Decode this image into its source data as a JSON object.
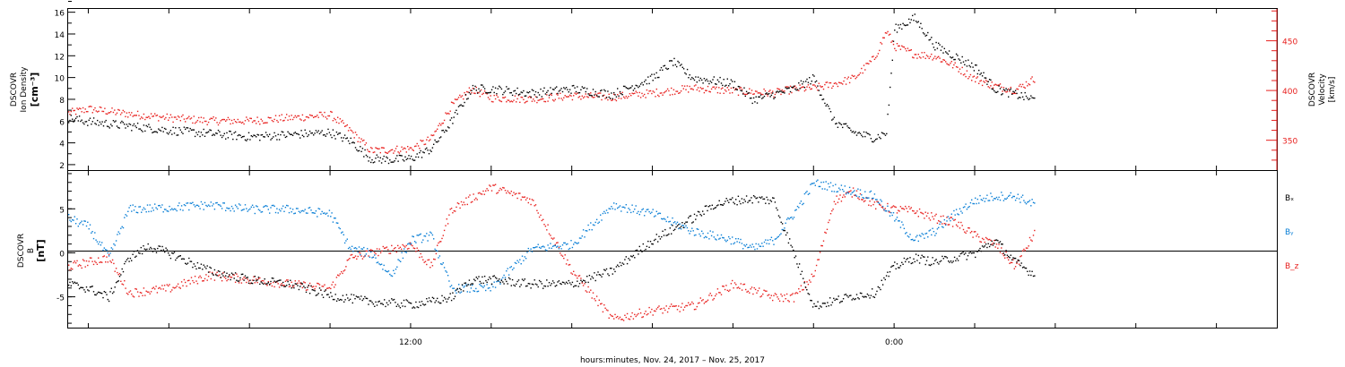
{
  "figure": {
    "xlabel": "hours:minutes, Nov. 24, 2017 – Nov. 25, 2017",
    "x_ticks": [
      "12:00",
      "0:00"
    ]
  },
  "colors": {
    "black": "#000000",
    "red": "#e8211f",
    "blue": "#0a7fd6"
  },
  "chart_data": [
    {
      "type": "scatter",
      "title": "",
      "ylabel_left": [
        "DSCOVR",
        "Ion  Density",
        "[cm⁻³]"
      ],
      "ylabel_right": [
        "DSCOVR",
        "Velocity",
        "[km/s]"
      ],
      "ylim_left": [
        1.5,
        16.3
      ],
      "yticks_left": [
        "2",
        "4",
        "6",
        "8",
        "10",
        "12",
        "14",
        "16"
      ],
      "ylim_right": [
        320,
        482
      ],
      "yticks_right": [
        "350",
        "400",
        "450"
      ],
      "xlim_hours": [
        3.5,
        33.5
      ],
      "grid": false,
      "series": [
        {
          "name": "",
          "axis": "left",
          "color": "black",
          "x": [
            3.5,
            4,
            5,
            6,
            7,
            8,
            9,
            10,
            10.5,
            11,
            11.5,
            12,
            12.5,
            13,
            13.5,
            14,
            15,
            16,
            17,
            18,
            18.5,
            19,
            20,
            20.5,
            21,
            21.5,
            22,
            22.5,
            23,
            23.5,
            23.8,
            24,
            24.5,
            25,
            25.5,
            26,
            26.5,
            27,
            27.5
          ],
          "y": [
            6.3,
            6.0,
            5.6,
            5.2,
            4.9,
            4.6,
            4.8,
            5.0,
            4.2,
            2.6,
            2.5,
            2.6,
            3.5,
            6.0,
            9.0,
            9.0,
            8.6,
            9.0,
            8.5,
            10.0,
            11.5,
            10.0,
            9.5,
            8.0,
            8.5,
            9.0,
            10.0,
            6.0,
            5.0,
            4.5,
            5.0,
            14.5,
            15.5,
            13.0,
            12.0,
            11.0,
            9.0,
            8.5,
            8.0
          ]
        },
        {
          "name": "",
          "axis": "right",
          "color": "red",
          "x": [
            3.5,
            4,
            5,
            6,
            7,
            8,
            9,
            10,
            10.5,
            11,
            11.5,
            12,
            12.5,
            13,
            13.5,
            14,
            15,
            16,
            17,
            18,
            19,
            20,
            21,
            21.5,
            22,
            22.5,
            23,
            23.5,
            23.8,
            24,
            24.5,
            25,
            25.5,
            26,
            26.5,
            27,
            27.5
          ],
          "y": [
            378,
            382,
            377,
            373,
            370,
            370,
            373,
            376,
            360,
            340,
            341,
            342,
            352,
            385,
            402,
            393,
            392,
            395,
            394,
            398,
            403,
            400,
            398,
            402,
            403,
            407,
            413,
            433,
            460,
            445,
            437,
            435,
            425,
            412,
            405,
            401,
            413
          ]
        }
      ]
    },
    {
      "type": "scatter",
      "title": "",
      "ylabel": [
        "DSCOVR",
        "B",
        "[nT]"
      ],
      "ylim": [
        -8.5,
        9.3
      ],
      "yticks": [
        "5",
        "0",
        "-5"
      ],
      "xlim_hours": [
        3.5,
        33.5
      ],
      "zero_line": true,
      "grid": false,
      "series": [
        {
          "name": "Bₓ",
          "color": "black",
          "x": [
            3.5,
            4,
            4.5,
            5,
            5.5,
            6,
            7,
            8,
            9,
            10,
            11,
            12,
            12.5,
            13,
            13.5,
            14,
            15,
            16,
            17,
            18,
            19,
            19.5,
            20,
            20.5,
            21,
            22,
            23,
            23.5,
            24,
            24.5,
            25,
            26,
            26.5,
            27,
            27.5
          ],
          "y": [
            -3.5,
            -4.0,
            -5.0,
            -0.5,
            0.8,
            0.0,
            -2.0,
            -3.0,
            -3.5,
            -4.8,
            -5.5,
            -5.8,
            -5.5,
            -5.0,
            -3.0,
            -3.0,
            -3.5,
            -3.5,
            -2.0,
            1.5,
            4.0,
            5.5,
            6.0,
            6.2,
            6.0,
            -6.0,
            -4.8,
            -4.5,
            -1.5,
            -0.5,
            -1.0,
            0.0,
            1.5,
            -1.0,
            -2.5
          ]
        },
        {
          "name": "Bᵧ",
          "color": "blue",
          "x": [
            3.5,
            4,
            4.5,
            5,
            6,
            7,
            8,
            9,
            10,
            10.5,
            11,
            11.5,
            12,
            12.5,
            13,
            14,
            15,
            16,
            17,
            18,
            19,
            20,
            20.5,
            21,
            21.5,
            22,
            22.5,
            23,
            23.5,
            24,
            24.5,
            25,
            25.5,
            26,
            26.5,
            27,
            27.5
          ],
          "y": [
            4.0,
            3.0,
            -0.5,
            5.0,
            5.2,
            5.5,
            5.0,
            5.0,
            4.5,
            0.5,
            0.0,
            -2.5,
            1.5,
            2.0,
            -4.0,
            -4.0,
            0.5,
            1.0,
            5.5,
            4.5,
            2.5,
            1.5,
            0.5,
            1.5,
            4.5,
            8.0,
            7.5,
            7.0,
            6.5,
            4.0,
            1.5,
            2.5,
            4.5,
            6.0,
            6.5,
            6.5,
            5.5
          ]
        },
        {
          "name": "B_z",
          "color": "red",
          "x": [
            3.5,
            4,
            4.5,
            5,
            6,
            7,
            8,
            9,
            10,
            10.5,
            11,
            12,
            12.5,
            13,
            14,
            15,
            16,
            17,
            18,
            19,
            20,
            21,
            21.5,
            22,
            22.5,
            23,
            23.5,
            24,
            24.5,
            25,
            25.5,
            26,
            26.5,
            27,
            27.5
          ],
          "y": [
            -1.5,
            -1.0,
            -0.5,
            -4.5,
            -4.0,
            -2.5,
            -3.0,
            -3.5,
            -4.0,
            -0.5,
            0.0,
            1.0,
            -1.5,
            5.0,
            7.5,
            6.0,
            -2.0,
            -7.5,
            -6.5,
            -6.0,
            -3.5,
            -5.0,
            -5.0,
            -2.5,
            6.0,
            7.0,
            5.5,
            5.0,
            4.8,
            4.0,
            3.5,
            2.0,
            1.0,
            -1.5,
            2.5
          ]
        }
      ]
    }
  ]
}
